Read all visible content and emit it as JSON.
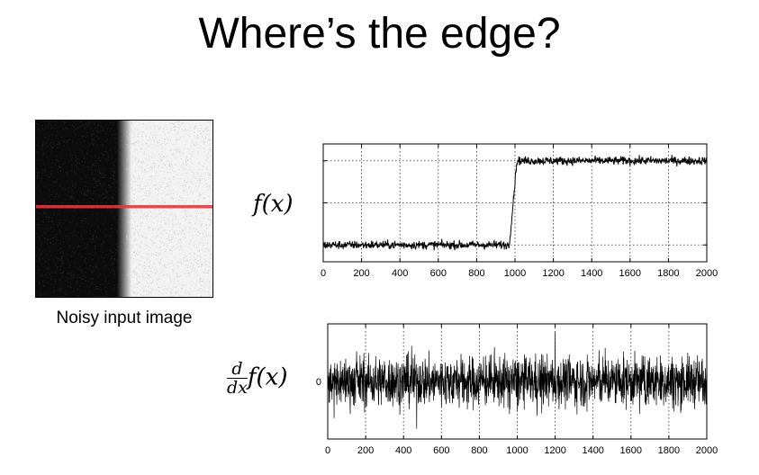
{
  "title": "Where’s the edge?",
  "image_caption": "Noisy input image",
  "colors": {
    "scanline": "#e03a3a",
    "dark_region": "#0c0c0c",
    "light_region": "#f2f2f2"
  },
  "plot_top": {
    "ylabel": "f(x)",
    "chart_data": {
      "type": "line",
      "x_ticks": [
        0,
        200,
        400,
        600,
        800,
        1000,
        1200,
        1400,
        1600,
        1800,
        2000
      ],
      "xlim": [
        0,
        2000
      ],
      "ylim": [
        -0.2,
        1.2
      ],
      "grid": true,
      "series": [
        {
          "low_level": 0,
          "high_level": 1,
          "step_start": 970,
          "step_end": 1010
        }
      ]
    }
  },
  "plot_bottom": {
    "ylabel_num": "d",
    "ylabel_den": "dx",
    "ylabel_fn": "f(x)",
    "y_tick": "0",
    "chart_data": {
      "type": "line",
      "x_ticks": [
        0,
        200,
        400,
        600,
        800,
        1000,
        1200,
        1400,
        1600,
        1800,
        2000
      ],
      "xlim": [
        0,
        2000
      ],
      "y_ticks": [
        0
      ],
      "grid": true
    }
  }
}
